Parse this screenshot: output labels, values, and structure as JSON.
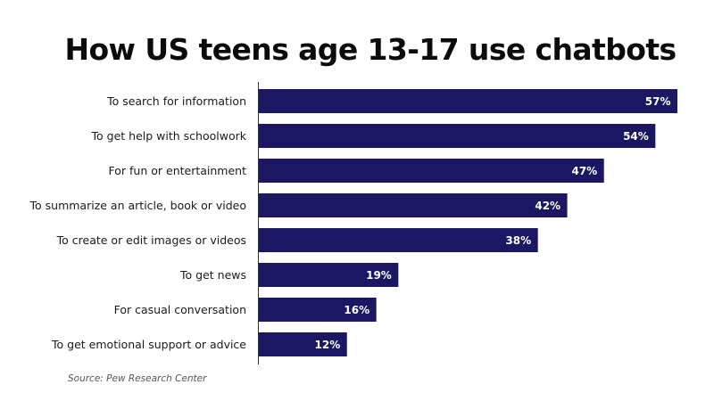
{
  "chart_data": {
    "type": "bar",
    "orientation": "horizontal",
    "title": "How US teens age 13-17 use chatbots",
    "xlabel": "",
    "ylabel": "",
    "xlim": [
      0,
      57
    ],
    "grid": false,
    "categories": [
      "To search for information",
      "To get help with schoolwork",
      "For fun or entertainment",
      "To summarize an article, book or video",
      "To create or edit images or videos",
      "To get news",
      "For casual conversation",
      "To get emotional support or advice"
    ],
    "values": [
      57,
      54,
      47,
      42,
      38,
      19,
      16,
      12
    ],
    "value_labels": [
      "57%",
      "54%",
      "47%",
      "42%",
      "38%",
      "19%",
      "16%",
      "12%"
    ],
    "unit": "%",
    "bar_color": "#1c1762",
    "source": "Source: Pew Research Center"
  }
}
